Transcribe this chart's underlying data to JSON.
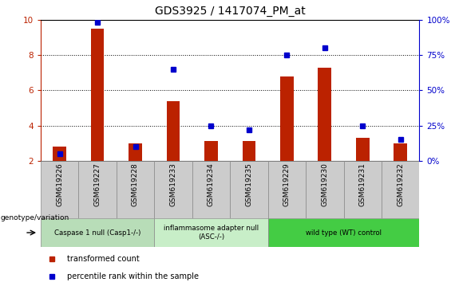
{
  "title": "GDS3925 / 1417074_PM_at",
  "samples": [
    "GSM619226",
    "GSM619227",
    "GSM619228",
    "GSM619233",
    "GSM619234",
    "GSM619235",
    "GSM619229",
    "GSM619230",
    "GSM619231",
    "GSM619232"
  ],
  "red_values": [
    2.8,
    9.5,
    3.0,
    5.4,
    3.1,
    3.1,
    6.8,
    7.3,
    3.3,
    3.0
  ],
  "blue_percentiles": [
    5,
    98,
    10,
    65,
    25,
    22,
    75,
    80,
    25,
    15
  ],
  "ylim": [
    2,
    10
  ],
  "yticks": [
    2,
    4,
    6,
    8,
    10
  ],
  "right_yticks": [
    0,
    25,
    50,
    75,
    100
  ],
  "red_color": "#bb2200",
  "blue_color": "#0000cc",
  "bar_bottom": 2.0,
  "groups": [
    {
      "label": "Caspase 1 null (Casp1-/-)",
      "start": 0,
      "end": 3,
      "color": "#b8ddb8"
    },
    {
      "label": "inflammasome adapter null\n(ASC-/-)",
      "start": 3,
      "end": 6,
      "color": "#c8eec8"
    },
    {
      "label": "wild type (WT) control",
      "start": 6,
      "end": 10,
      "color": "#44cc44"
    }
  ],
  "legend_red": "transformed count",
  "legend_blue": "percentile rank within the sample",
  "right_axis_color": "#0000cc",
  "title_fontsize": 10,
  "tick_fontsize": 7.5,
  "bar_width": 0.35
}
